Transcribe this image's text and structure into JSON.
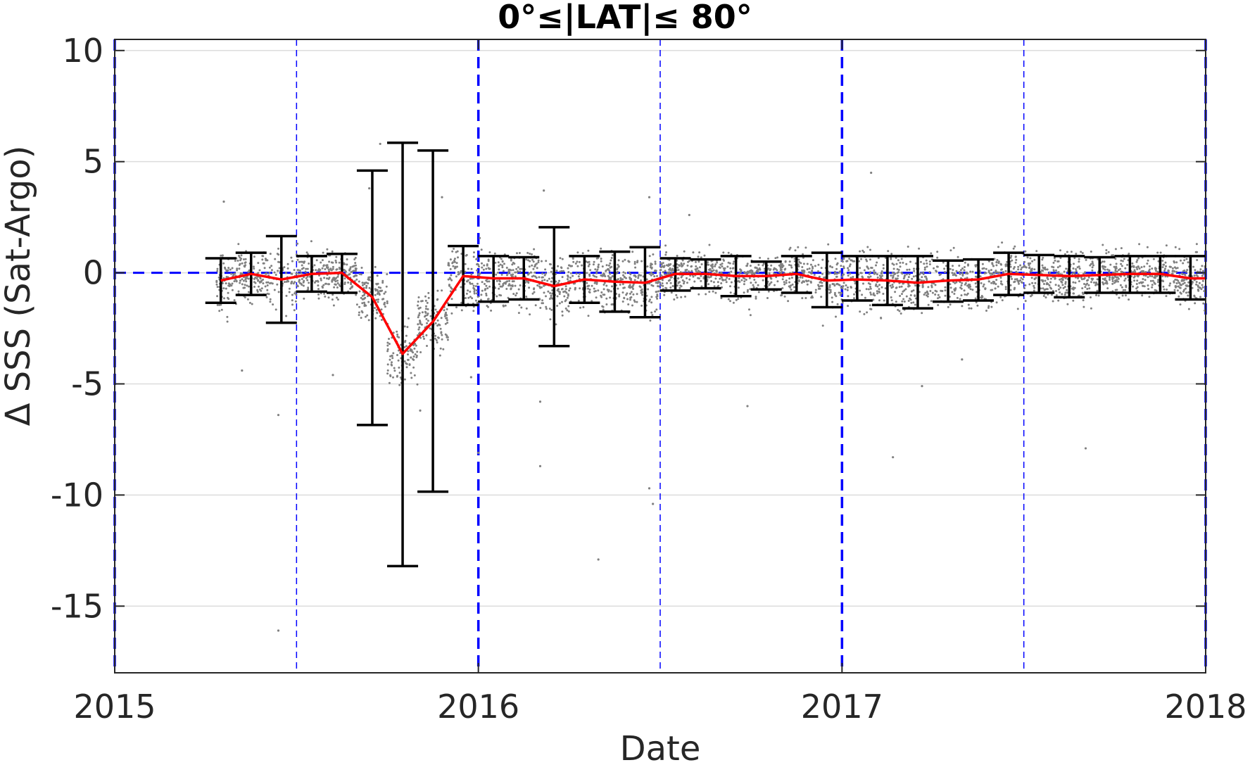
{
  "chart_data": {
    "type": "scatter",
    "title": "0°≤|LAT|≤ 80°",
    "xlabel": "Date",
    "ylabel": "Δ SSS (Sat-Argo)",
    "xlim": [
      2015.0,
      2018.0
    ],
    "ylim": [
      -18,
      10.5
    ],
    "x_ticks": [
      2015,
      2016,
      2017,
      2018
    ],
    "x_tick_labels": [
      "2015",
      "2016",
      "2017",
      "2018"
    ],
    "y_ticks": [
      10,
      5,
      0,
      -5,
      -10,
      -15
    ],
    "y_tick_labels": [
      "10",
      "5",
      "0",
      "-5",
      "-10",
      "-15"
    ],
    "grid": "horizontal",
    "reference_lines": {
      "zero_line": 0,
      "year_boundaries": [
        2015.0,
        2016.0,
        2017.0,
        2018.0
      ],
      "half_year_boundaries": [
        2015.5,
        2016.5,
        2017.5
      ]
    },
    "colors": {
      "mean_line": "#ff0000",
      "error_bars": "#000000",
      "scatter": "#808080",
      "reference": "#0000ff",
      "grid": "#dcdcdc",
      "axis": "#262626"
    },
    "series": [
      {
        "name": "",
        "kind": "mean_with_error_bars",
        "x": [
          2015.2917,
          2015.375,
          2015.4583,
          2015.5417,
          2015.625,
          2015.7083,
          2015.7917,
          2015.875,
          2015.9583,
          2016.0417,
          2016.125,
          2016.2083,
          2016.2917,
          2016.375,
          2016.4583,
          2016.5417,
          2016.625,
          2016.7083,
          2016.7917,
          2016.875,
          2016.9583,
          2017.0417,
          2017.125,
          2017.2083,
          2017.2917,
          2017.375,
          2017.4583,
          2017.5417,
          2017.625,
          2017.7083,
          2017.7917,
          2017.875,
          2017.9583
        ],
        "mean": [
          -0.35,
          -0.05,
          -0.3,
          -0.05,
          0.0,
          -1.1,
          -3.65,
          -2.2,
          -0.15,
          -0.25,
          -0.25,
          -0.6,
          -0.3,
          -0.4,
          -0.45,
          -0.05,
          -0.05,
          -0.15,
          -0.15,
          -0.05,
          -0.35,
          -0.3,
          -0.35,
          -0.45,
          -0.35,
          -0.3,
          -0.05,
          -0.1,
          -0.15,
          -0.1,
          -0.05,
          -0.05,
          -0.25
        ],
        "upper": [
          0.65,
          0.9,
          1.65,
          0.75,
          0.85,
          4.6,
          5.85,
          5.5,
          1.2,
          0.75,
          0.7,
          2.05,
          0.75,
          0.95,
          1.15,
          0.65,
          0.6,
          0.75,
          0.5,
          0.75,
          0.9,
          0.75,
          0.75,
          0.75,
          0.55,
          0.6,
          0.9,
          0.8,
          0.75,
          0.7,
          0.75,
          0.75,
          0.75
        ],
        "lower": [
          -1.35,
          -1.0,
          -2.25,
          -0.85,
          -0.9,
          -6.85,
          -13.2,
          -9.85,
          -1.45,
          -1.3,
          -1.2,
          -3.3,
          -1.35,
          -1.75,
          -2.0,
          -0.8,
          -0.7,
          -1.05,
          -0.75,
          -0.9,
          -1.55,
          -1.25,
          -1.45,
          -1.6,
          -1.3,
          -1.25,
          -1.0,
          -0.9,
          -1.1,
          -0.9,
          -0.9,
          -0.9,
          -1.2
        ]
      },
      {
        "name": "",
        "kind": "scatter_samples",
        "n_points": 3600,
        "x_range": [
          2015.28,
          2018.0
        ]
      }
    ],
    "outliers": [
      [
        2015.73,
        5.8
      ],
      [
        2015.3,
        3.2
      ],
      [
        2015.7,
        3.8
      ],
      [
        2015.9,
        3.4
      ],
      [
        2016.18,
        3.7
      ],
      [
        2016.47,
        3.4
      ],
      [
        2016.58,
        2.6
      ],
      [
        2017.08,
        4.5
      ],
      [
        2017.14,
        -8.3
      ],
      [
        2017.22,
        -5.1
      ],
      [
        2017.67,
        -7.9
      ],
      [
        2015.45,
        -6.4
      ],
      [
        2015.45,
        -16.1
      ],
      [
        2016.17,
        -8.7
      ],
      [
        2016.17,
        -5.8
      ],
      [
        2016.47,
        -9.7
      ],
      [
        2016.48,
        -10.4
      ],
      [
        2016.33,
        -12.9
      ],
      [
        2015.84,
        -6.2
      ],
      [
        2016.74,
        -6.0
      ],
      [
        2015.35,
        -4.4
      ],
      [
        2015.6,
        -4.6
      ],
      [
        2015.98,
        -4.7
      ],
      [
        2016.0,
        -8.1
      ],
      [
        2017.33,
        -3.9
      ]
    ]
  }
}
